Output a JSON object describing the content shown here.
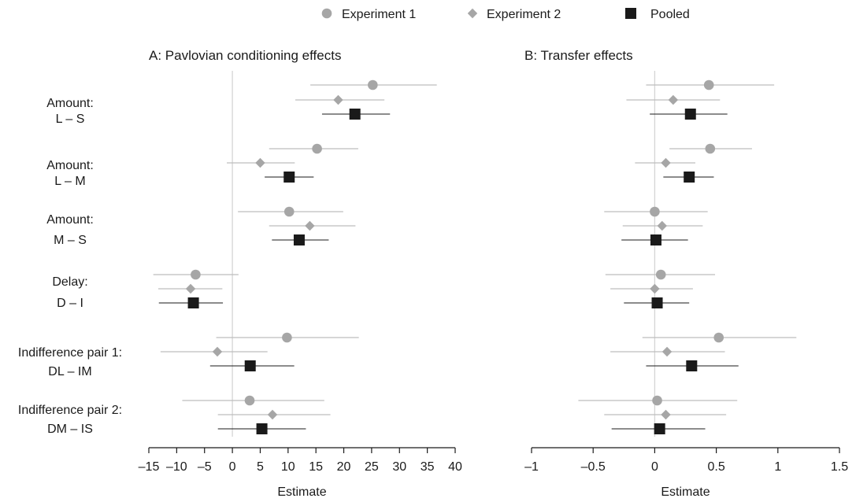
{
  "legend": [
    {
      "name": "Experiment 1",
      "marker": "circle",
      "color": "#a6a6a6"
    },
    {
      "name": "Experiment 2",
      "marker": "diamond",
      "color": "#a6a6a6"
    },
    {
      "name": "Pooled",
      "marker": "square",
      "color": "#1a1a1a"
    }
  ],
  "colors": {
    "exp_line": "#bdbdbd",
    "exp_marker": "#a6a6a6",
    "pooled": "#1a1a1a",
    "zero_line": "#d4d4d4",
    "axis": "#1a1a1a"
  },
  "rows": [
    {
      "line1": "Amount:",
      "line2": "L – S"
    },
    {
      "line1": "Amount:",
      "line2": "L – M"
    },
    {
      "line1": "Amount:",
      "line2": "M – S"
    },
    {
      "line1": "Delay:",
      "line2": "D – I"
    },
    {
      "line1": "Indifference pair 1:",
      "line2": "DL – IM"
    },
    {
      "line1": "Indifference pair 2:",
      "line2": "DM – IS"
    }
  ],
  "chart_data": [
    {
      "type": "scatter",
      "subtype": "forest-plot",
      "title": "A: Pavlovian conditioning effects",
      "xlabel": "Estimate",
      "xlim": [
        -15,
        40
      ],
      "xticks": [
        -15,
        -10,
        -5,
        0,
        5,
        10,
        15,
        20,
        25,
        30,
        35,
        40
      ],
      "xtick_labels": [
        "–15",
        "–10",
        "–5",
        "0",
        "5",
        "10",
        "15",
        "20",
        "25",
        "30",
        "35",
        "40"
      ],
      "series": [
        {
          "name": "Experiment 1",
          "marker": "circle",
          "estimates": [
            25.2,
            15.2,
            10.2,
            -6.6,
            9.8,
            3.1
          ],
          "lower": [
            14,
            6.6,
            1,
            -14.2,
            -2.9,
            -9
          ],
          "upper": [
            36.7,
            22.6,
            19.9,
            1.1,
            22.7,
            16.5
          ]
        },
        {
          "name": "Experiment 2",
          "marker": "diamond",
          "estimates": [
            19,
            5,
            13.9,
            -7.5,
            -2.7,
            7.2
          ],
          "lower": [
            11.3,
            -1,
            6.6,
            -13.3,
            -12.9,
            -2.6
          ],
          "upper": [
            27.3,
            11.2,
            22.1,
            -1.8,
            6.3,
            17.6
          ]
        },
        {
          "name": "Pooled",
          "marker": "square",
          "estimates": [
            22,
            10.2,
            12,
            -7,
            3.2,
            5.3
          ],
          "lower": [
            16.1,
            5.8,
            7.1,
            -13.2,
            -4,
            -2.6
          ],
          "upper": [
            28.3,
            14.6,
            17.3,
            -1.7,
            11.1,
            13.2
          ]
        }
      ]
    },
    {
      "type": "scatter",
      "subtype": "forest-plot",
      "title": "B: Transfer effects",
      "xlabel": "Estimate",
      "xlim": [
        -1,
        1.5
      ],
      "xticks": [
        -1,
        -0.5,
        0,
        0.5,
        1,
        1.5
      ],
      "xtick_labels": [
        "–1",
        "–0.5",
        "0",
        "0.5",
        "1",
        "1.5"
      ],
      "series": [
        {
          "name": "Experiment 1",
          "marker": "circle",
          "estimates": [
            0.44,
            0.45,
            0,
            0.05,
            0.52,
            0.02
          ],
          "lower": [
            -0.07,
            0.12,
            -0.41,
            -0.4,
            -0.1,
            -0.62
          ],
          "upper": [
            0.97,
            0.79,
            0.43,
            0.49,
            1.15,
            0.67
          ]
        },
        {
          "name": "Experiment 2",
          "marker": "diamond",
          "estimates": [
            0.15,
            0.09,
            0.06,
            0,
            0.1,
            0.09
          ],
          "lower": [
            -0.23,
            -0.16,
            -0.26,
            -0.36,
            -0.36,
            -0.41
          ],
          "upper": [
            0.53,
            0.33,
            0.39,
            0.31,
            0.57,
            0.58
          ]
        },
        {
          "name": "Pooled",
          "marker": "square",
          "estimates": [
            0.29,
            0.28,
            0.01,
            0.02,
            0.3,
            0.04
          ],
          "lower": [
            -0.04,
            0.07,
            -0.27,
            -0.25,
            -0.07,
            -0.35
          ],
          "upper": [
            0.59,
            0.48,
            0.27,
            0.28,
            0.68,
            0.41
          ]
        }
      ]
    }
  ]
}
